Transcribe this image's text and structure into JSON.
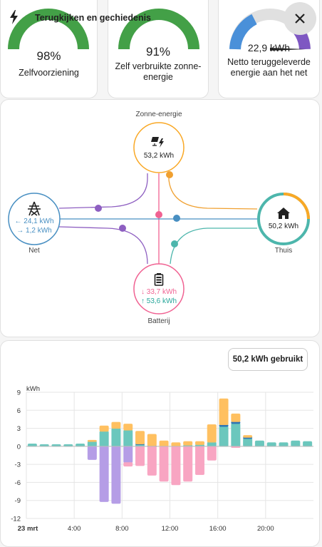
{
  "header": {
    "title": "Terugkijken en gechiedenis",
    "icon": "bolt-icon"
  },
  "gauges": [
    {
      "value": "98%",
      "label": "Zelfvoorziening",
      "fraction": 0.98,
      "color": "#43a047"
    },
    {
      "value": "91%",
      "label": "Zelf verbruikte zonne-energie",
      "fraction": 0.91,
      "color": "#43a047"
    },
    {
      "value": "22,9 kWh",
      "label": "Netto teruggeleverde energie aan het net",
      "color_from": "#1e88e5",
      "color_to": "#8e24aa"
    }
  ],
  "energy": {
    "solar": {
      "label": "Zonne-energie",
      "value": "53,2 kWh",
      "color": "#f9a825"
    },
    "grid": {
      "label": "Net",
      "import": "← 24,1 kWh",
      "export": "→ 1,2 kWh",
      "color": "#488fc2"
    },
    "home": {
      "label": "Thuis",
      "value": "50,2 kWh"
    },
    "battery": {
      "label": "Batterij",
      "discharge": "↓ 33,7 kWh",
      "charge": "↑ 53,6 kWh",
      "color": "#f06292"
    }
  },
  "usage_button": "50,2 kWh gebruikt",
  "chart_data": {
    "type": "bar",
    "ylabel": "kWh",
    "ylim": [
      -12,
      9
    ],
    "yticks": [
      9,
      6,
      3,
      0,
      -3,
      -6,
      -9,
      -12
    ],
    "xticks": [
      {
        "hour": 0,
        "label": "23 mrt"
      },
      {
        "hour": 4,
        "label": "4:00"
      },
      {
        "hour": 8,
        "label": "8:00"
      },
      {
        "hour": 12,
        "label": "12:00"
      },
      {
        "hour": 16,
        "label": "16:00"
      },
      {
        "hour": 20,
        "label": "20:00"
      }
    ],
    "hours": [
      0,
      1,
      2,
      3,
      4,
      5,
      6,
      7,
      8,
      9,
      10,
      11,
      12,
      13,
      14,
      15,
      16,
      17,
      18,
      19,
      20,
      21,
      22,
      23
    ],
    "series": [
      {
        "key": "grid_in",
        "color": "#6bc7bd",
        "values": [
          0.4,
          0.3,
          0.3,
          0.3,
          0.4,
          0.8,
          2.5,
          3.0,
          2.7,
          0.3,
          0,
          0,
          0,
          0.2,
          0.3,
          0.7,
          3.3,
          3.8,
          1.3,
          0.9,
          0.6,
          0.6,
          0.9,
          0.8
        ]
      },
      {
        "key": "battery_in",
        "color": "#2e74b5",
        "values": [
          0,
          0,
          0,
          0,
          0,
          0,
          0,
          0,
          0,
          0.1,
          0.1,
          0,
          0,
          0,
          0,
          0,
          0.3,
          0.3,
          0.2,
          0,
          0,
          0,
          0,
          0
        ]
      },
      {
        "key": "solar",
        "color": "#ffc060",
        "values": [
          0,
          0,
          0,
          0,
          0,
          0.2,
          0.9,
          1.0,
          1.0,
          2.1,
          1.9,
          0.9,
          0.6,
          0.6,
          0.5,
          2.9,
          4.3,
          1.3,
          0.3,
          0,
          0,
          0,
          0,
          0
        ]
      },
      {
        "key": "battery_out",
        "color": "#b59de6",
        "values": [
          0,
          0,
          0,
          0,
          0,
          -2.2,
          -9.2,
          -9.5,
          -2.7,
          0,
          0,
          0,
          0,
          0,
          0,
          0,
          0,
          0,
          0,
          0,
          0,
          0,
          0,
          0
        ]
      },
      {
        "key": "grid_out",
        "color": "#f8a5c2",
        "values": [
          0,
          0,
          0,
          0,
          0,
          0,
          0,
          0,
          -0.6,
          -3.2,
          -4.8,
          -5.8,
          -6.4,
          -5.8,
          -4.7,
          -2.3,
          0,
          -0.2,
          0,
          0,
          0,
          0,
          0,
          0
        ]
      }
    ]
  }
}
